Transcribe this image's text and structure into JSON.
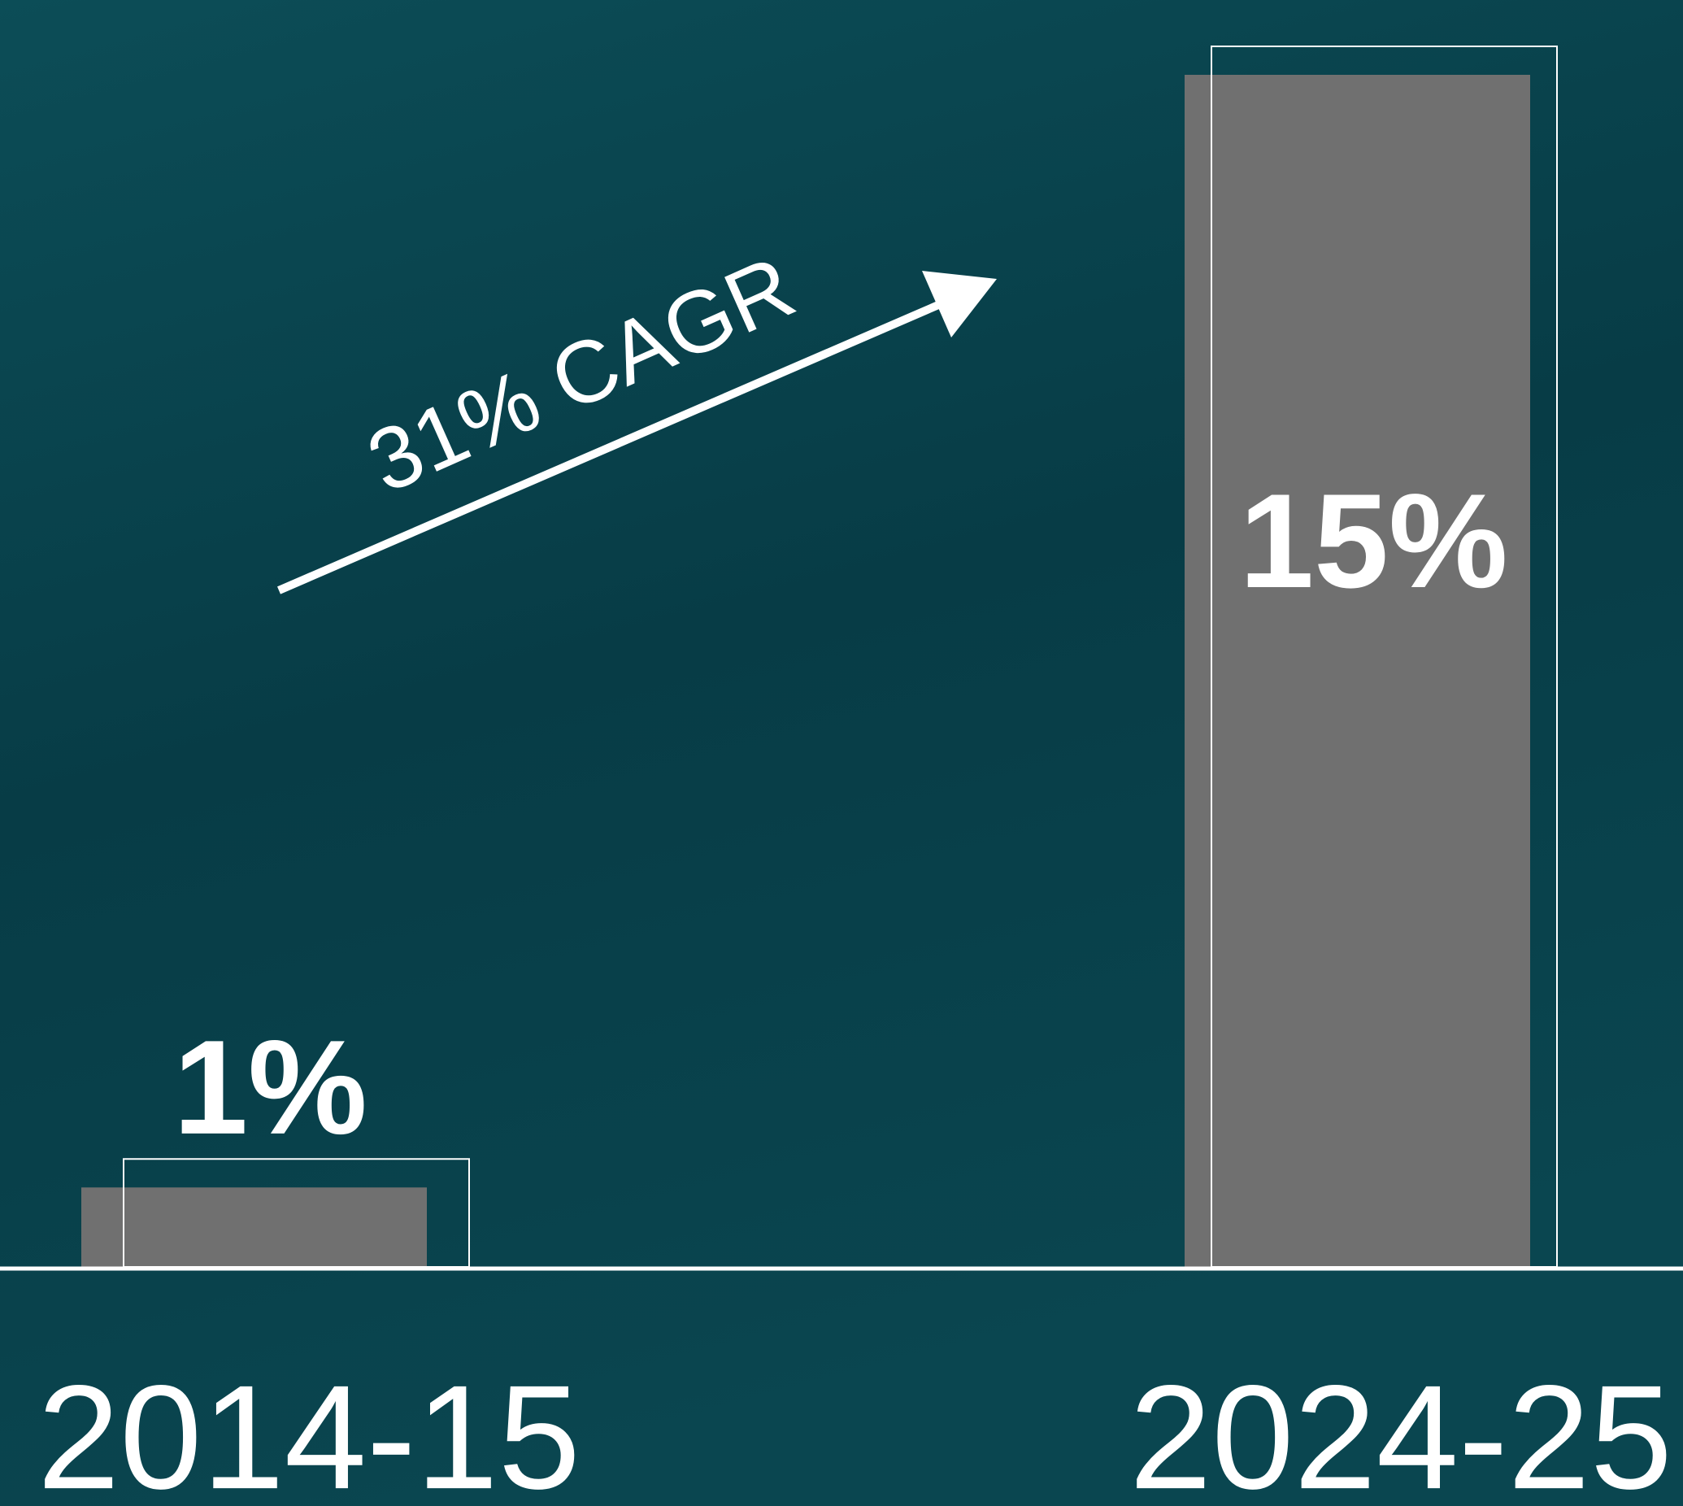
{
  "chart_data": {
    "type": "bar",
    "categories": [
      "2014-15",
      "2024-25"
    ],
    "values": [
      1,
      15
    ],
    "value_labels": [
      "1%",
      "15%"
    ],
    "color": "#707070",
    "annotation": "31% CAGR"
  }
}
